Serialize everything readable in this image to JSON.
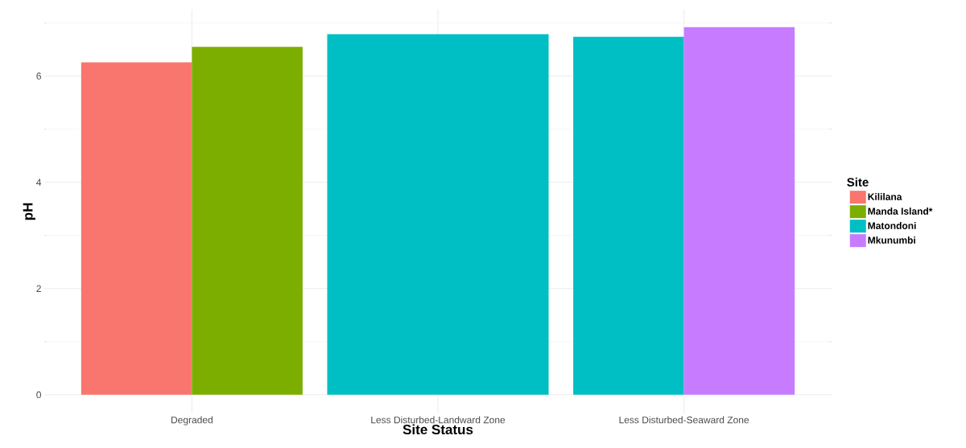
{
  "chart_data": {
    "type": "bar",
    "xlabel": "Site Status",
    "ylabel": "pH",
    "legend_title": "Site",
    "categories": [
      "Degraded",
      "Less Disturbed-Landward Zone",
      "Less Disturbed-Seaward Zone"
    ],
    "series": [
      {
        "name": "Kililana",
        "color": "#f8766d",
        "values": [
          6.26,
          null,
          null
        ]
      },
      {
        "name": "Manda Island*",
        "color": "#7cae00",
        "values": [
          6.55,
          null,
          null
        ]
      },
      {
        "name": "Matondoni",
        "color": "#00bfc4",
        "values": [
          null,
          6.79,
          6.74
        ]
      },
      {
        "name": "Mkunumbi",
        "color": "#c77cff",
        "values": [
          null,
          null,
          6.92
        ]
      }
    ],
    "ylim": [
      -0.35,
      7.25
    ],
    "yticks": [
      0,
      2,
      4,
      6
    ],
    "grid": true,
    "legend": "right"
  }
}
